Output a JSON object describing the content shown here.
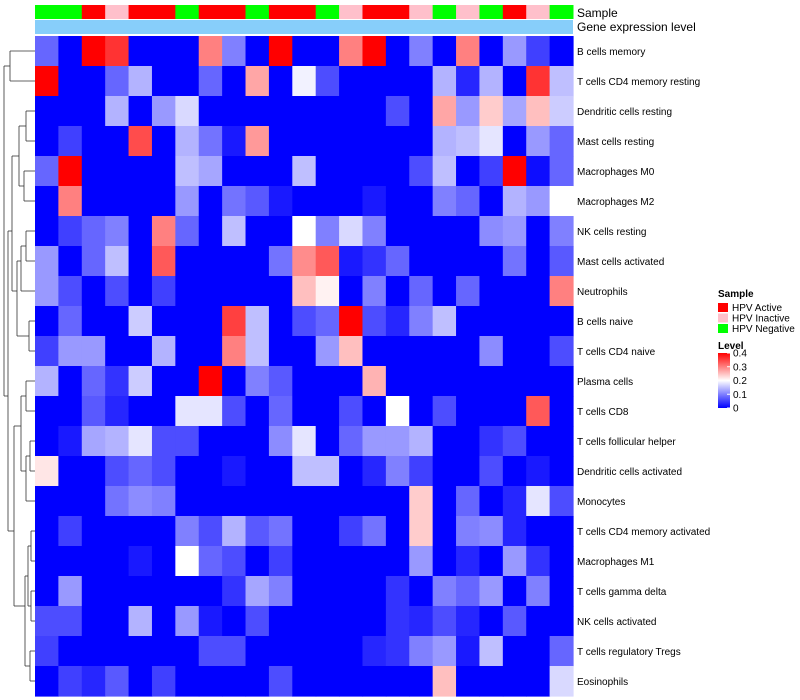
{
  "chart_data": {
    "type": "heatmap",
    "title": "",
    "annotation_titles": [
      "Sample",
      "Gene expression level"
    ],
    "legend_titles": [
      "Sample",
      "Level"
    ],
    "sample_legend": [
      {
        "label": "HPV Active",
        "color": "#ff0000"
      },
      {
        "label": "HPV Inactive",
        "color": "#ffc0cb"
      },
      {
        "label": "HPV Negative",
        "color": "#00ff00"
      }
    ],
    "level_ticks": [
      "0.4",
      "0.3",
      "0.2",
      "0.1",
      "0"
    ],
    "level_tick_values": [
      0.4,
      0.3,
      0.2,
      0.1,
      0
    ],
    "level_range": [
      0,
      0.4
    ],
    "color_scale": {
      "low": "#0000ff",
      "mid": "#ffffff",
      "high": "#ff0000",
      "mid_value": 0.2
    },
    "sample_groups": [
      "HPV Negative",
      "HPV Negative",
      "HPV Active",
      "HPV Inactive",
      "HPV Active",
      "HPV Active",
      "HPV Negative",
      "HPV Active",
      "HPV Active",
      "HPV Negative",
      "HPV Active",
      "HPV Active",
      "HPV Negative",
      "HPV Inactive",
      "HPV Active",
      "HPV Active",
      "HPV Inactive",
      "HPV Negative",
      "HPV Inactive",
      "HPV Negative",
      "HPV Active",
      "HPV Inactive",
      "HPV Negative"
    ],
    "rows": [
      "B cells memory",
      "T cells CD4 memory resting",
      "Dendritic cells resting",
      "Mast cells resting",
      "Macrophages M0",
      "Macrophages M2",
      "NK cells resting",
      "Mast cells activated",
      "Neutrophils",
      "B cells naive",
      "T cells CD4 naive",
      "Plasma cells",
      "T cells CD8",
      "T cells follicular helper",
      "Dendritic cells activated",
      "Monocytes",
      "T cells CD4 memory activated",
      "Macrophages M1",
      "T cells gamma delta",
      "NK cells activated",
      "T cells regulatory  Tregs",
      "Eosinophils"
    ],
    "values": [
      [
        0.08,
        0,
        0.4,
        0.36,
        0,
        0,
        0,
        0.3,
        0.1,
        0,
        0.4,
        0,
        0,
        0.3,
        0.4,
        0,
        0.1,
        0,
        0.3,
        0,
        0.12,
        0.05,
        0
      ],
      [
        0.4,
        0,
        0,
        0.08,
        0.14,
        0,
        0,
        0.08,
        0,
        0.27,
        0,
        0.19,
        0.06,
        0,
        0,
        0,
        0,
        0.14,
        0.03,
        0.14,
        0,
        0.36,
        0.15
      ],
      [
        0,
        0,
        0,
        0.14,
        0,
        0.12,
        0.17,
        0,
        0,
        0,
        0,
        0,
        0,
        0,
        0,
        0.06,
        0,
        0.27,
        0.12,
        0.24,
        0.13,
        0.25,
        0.16
      ],
      [
        0,
        0.05,
        0,
        0,
        0.34,
        0,
        0.14,
        0.09,
        0.02,
        0.28,
        0,
        0,
        0,
        0,
        0,
        0,
        0,
        0.14,
        0.15,
        0.18,
        0,
        0.12,
        0.08
      ],
      [
        0.08,
        0.4,
        0,
        0,
        0,
        0,
        0.15,
        0.13,
        0,
        0,
        0,
        0.15,
        0,
        0,
        0,
        0,
        0.06,
        0.15,
        0,
        0.05,
        0.4,
        0.01,
        0.08
      ],
      [
        0,
        0.3,
        0,
        0,
        0,
        0,
        0.12,
        0,
        0.09,
        0.07,
        0.02,
        0,
        0,
        0,
        0.02,
        0,
        0,
        0.1,
        0.08,
        0,
        0.14,
        0.12,
        0.2
      ],
      [
        0,
        0.05,
        0.08,
        0.1,
        0,
        0.3,
        0.08,
        0,
        0.15,
        0,
        0,
        0.2,
        0.1,
        0.17,
        0.1,
        0,
        0,
        0,
        0,
        0.11,
        0.12,
        0,
        0.1
      ],
      [
        0.12,
        0,
        0.08,
        0.15,
        0,
        0.33,
        0,
        0,
        0,
        0,
        0.09,
        0.29,
        0.33,
        0.02,
        0.04,
        0.08,
        0,
        0,
        0,
        0,
        0.09,
        0,
        0.07
      ],
      [
        0.12,
        0.06,
        0,
        0.06,
        0,
        0.05,
        0,
        0,
        0,
        0,
        0,
        0.25,
        0.21,
        0,
        0.1,
        0,
        0.08,
        0,
        0.08,
        0,
        0,
        0,
        0.3
      ],
      [
        0,
        0.08,
        0,
        0,
        0.16,
        0,
        0,
        0,
        0.35,
        0.15,
        0,
        0.06,
        0.08,
        0.4,
        0.06,
        0.03,
        0.1,
        0.15,
        0,
        0,
        0,
        0,
        0
      ],
      [
        0.05,
        0.12,
        0.12,
        0,
        0,
        0.14,
        0,
        0,
        0.3,
        0.15,
        0,
        0,
        0.12,
        0.25,
        0,
        0,
        0,
        0,
        0,
        0.11,
        0,
        0,
        0.06
      ],
      [
        0.14,
        0,
        0.08,
        0.04,
        0.16,
        0,
        0,
        0.4,
        0,
        0.1,
        0.07,
        0,
        0,
        0,
        0.26,
        0,
        0,
        0,
        0,
        0,
        0,
        0,
        0
      ],
      [
        0,
        0,
        0.07,
        0.03,
        0,
        0,
        0.18,
        0.18,
        0.06,
        0,
        0.08,
        0,
        0,
        0.06,
        0,
        0.2,
        0,
        0.06,
        0,
        0,
        0,
        0.33,
        0
      ],
      [
        0,
        0.02,
        0.13,
        0.14,
        0.18,
        0.06,
        0.06,
        0,
        0,
        0,
        0.11,
        0.18,
        0,
        0.08,
        0.12,
        0.12,
        0.14,
        0,
        0,
        0.04,
        0.06,
        0,
        0
      ],
      [
        0.22,
        0,
        0,
        0.06,
        0.08,
        0.06,
        0,
        0,
        0.02,
        0,
        0,
        0.15,
        0.15,
        0,
        0.03,
        0.1,
        0.05,
        0,
        0,
        0.06,
        0,
        0.02,
        0
      ],
      [
        0,
        0,
        0,
        0.09,
        0.11,
        0.1,
        0,
        0,
        0,
        0,
        0,
        0,
        0,
        0,
        0,
        0,
        0.24,
        0,
        0.08,
        0,
        0.03,
        0.18,
        0.06
      ],
      [
        0,
        0.05,
        0,
        0,
        0,
        0,
        0.1,
        0.06,
        0.14,
        0.07,
        0.09,
        0,
        0,
        0.05,
        0.09,
        0,
        0.24,
        0,
        0.1,
        0.11,
        0.03,
        0,
        0
      ],
      [
        0,
        0,
        0,
        0,
        0.02,
        0,
        0.2,
        0.08,
        0.06,
        0,
        0.05,
        0,
        0,
        0,
        0,
        0,
        0.12,
        0,
        0.03,
        0,
        0.12,
        0.04,
        0
      ],
      [
        0,
        0.12,
        0,
        0,
        0,
        0,
        0,
        0,
        0.04,
        0.13,
        0.1,
        0,
        0,
        0,
        0,
        0.04,
        0,
        0.1,
        0.08,
        0.12,
        0,
        0.1,
        0
      ],
      [
        0.06,
        0.06,
        0,
        0,
        0.14,
        0,
        0.12,
        0.02,
        0,
        0.06,
        0,
        0,
        0,
        0,
        0,
        0.04,
        0.03,
        0.06,
        0.03,
        0,
        0.07,
        0,
        0
      ],
      [
        0.05,
        0,
        0,
        0,
        0,
        0,
        0,
        0.06,
        0.06,
        0,
        0,
        0,
        0,
        0,
        0.03,
        0.04,
        0.1,
        0.12,
        0.02,
        0.15,
        0,
        0,
        0.08
      ],
      [
        0,
        0.05,
        0.03,
        0.07,
        0,
        0.05,
        0,
        0,
        0,
        0,
        0.06,
        0,
        0,
        0,
        0,
        0,
        0,
        0.25,
        0,
        0,
        0,
        0,
        0.17
      ]
    ],
    "gene_expression_bar_color": "#87cefa"
  }
}
